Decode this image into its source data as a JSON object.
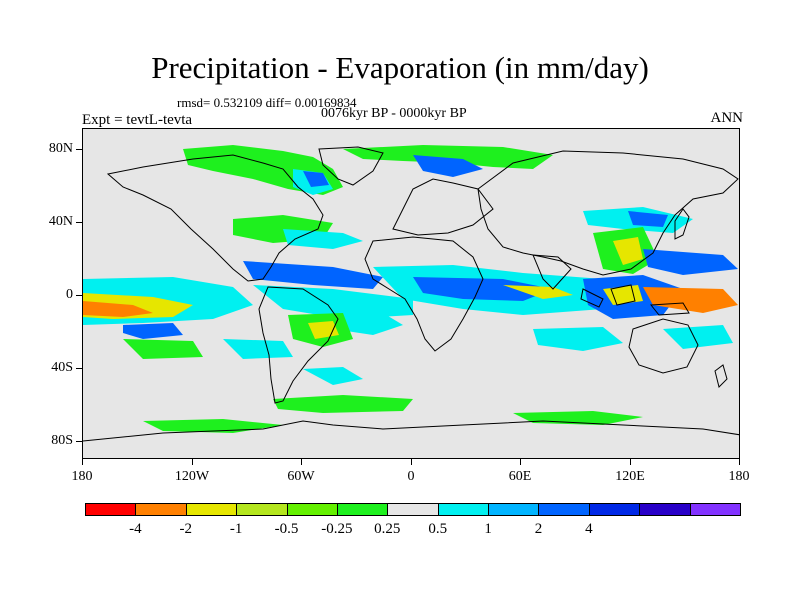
{
  "title": "Precipitation - Evaporation (in mm/day)",
  "stats": "rmsd= 0.532109  diff= 0.00169834",
  "period": "0076kyr BP - 0000kyr BP",
  "experiment": "Expt = tevtL-tevta",
  "season": "ANN",
  "map": {
    "background_color": "#e6e6e6",
    "lat_labels": [
      "80N",
      "40N",
      "0",
      "40S",
      "80S"
    ],
    "lon_labels": [
      "180",
      "120W",
      "60W",
      "0",
      "60E",
      "120E",
      "180"
    ]
  },
  "colorbar": {
    "colors": [
      "#ff0000",
      "#ff8000",
      "#e6e600",
      "#b4e61e",
      "#64f000",
      "#1ef01e",
      "#e6e6e6",
      "#00f0f0",
      "#00b4ff",
      "#0064ff",
      "#0028e6",
      "#2800c8",
      "#8232ff"
    ],
    "labels": [
      "-4",
      "-2",
      "-1",
      "-0.5",
      "-0.25",
      "0.25",
      "0.5",
      "1",
      "2",
      "4"
    ]
  }
}
